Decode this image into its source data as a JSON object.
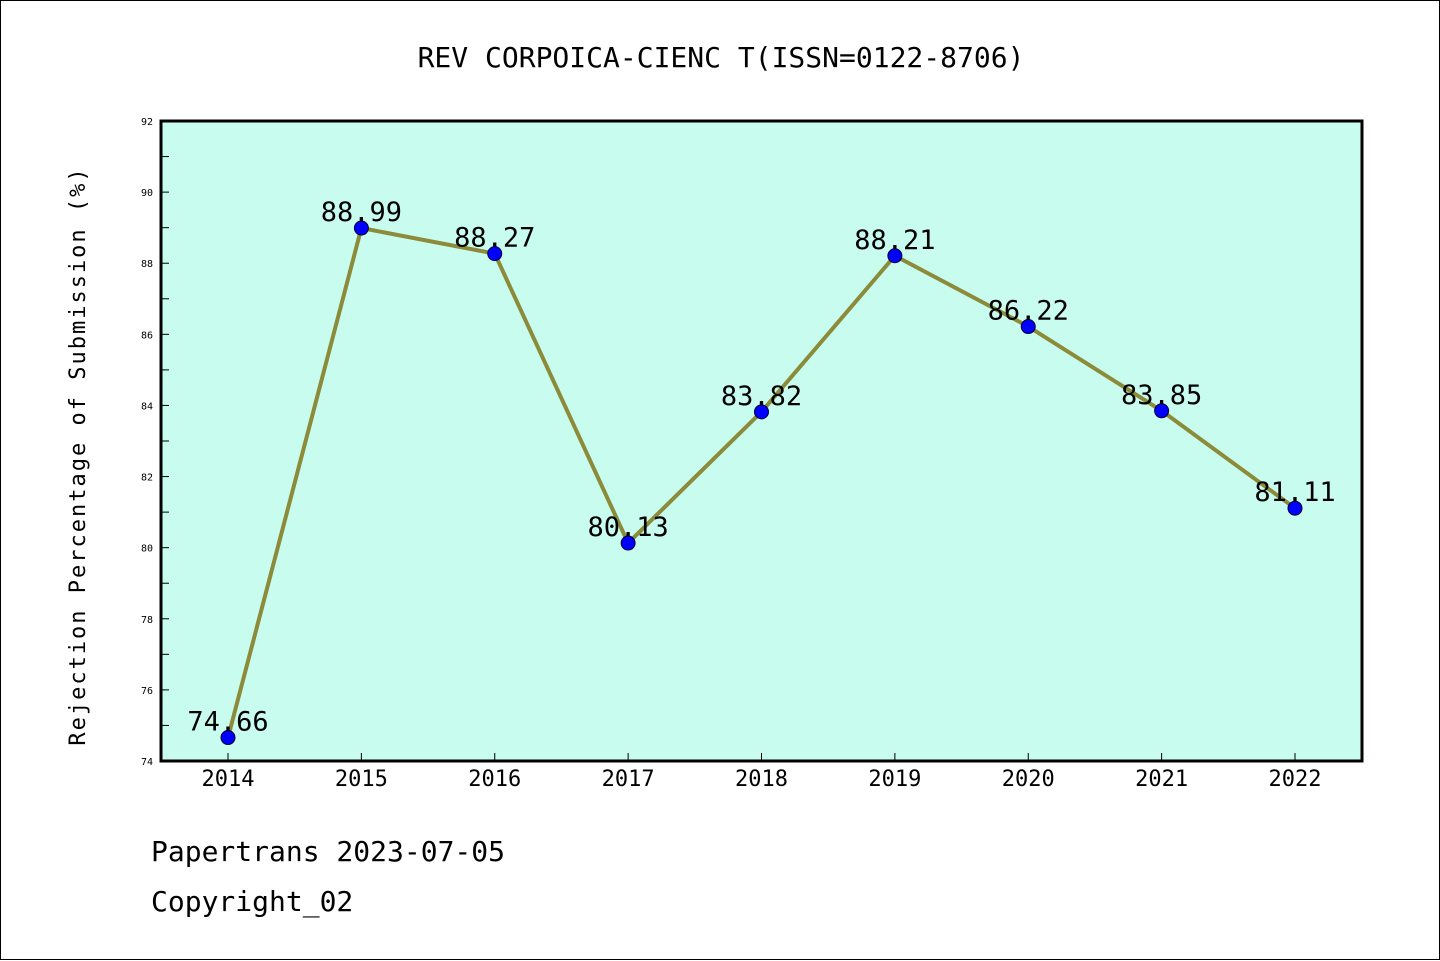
{
  "chart_data": {
    "type": "line",
    "title": "REV CORPOICA-CIENC T(ISSN=0122-8706)",
    "ylabel": "Rejection Percentage of Submission (%)",
    "xlabel": "",
    "categories": [
      "2014",
      "2015",
      "2016",
      "2017",
      "2018",
      "2019",
      "2020",
      "2021",
      "2022"
    ],
    "series": [
      {
        "values": [
          74.66,
          88.99,
          88.27,
          80.13,
          83.82,
          88.21,
          86.22,
          83.85,
          81.11
        ],
        "value_labels": [
          "74.66",
          "88.99",
          "88.27",
          "80.13",
          "83.82",
          "88.21",
          "86.22",
          "83.85",
          "81.11"
        ]
      }
    ],
    "ylim": [
      74,
      92
    ],
    "yticks": [
      74,
      76,
      78,
      80,
      82,
      84,
      86,
      88,
      90,
      92
    ],
    "grid": false,
    "legend": "none",
    "colors": {
      "plot_background": "#c8fcee",
      "line": "#8b8b3a",
      "marker": "#0000ff"
    }
  },
  "footer": {
    "source": "Papertrans 2023-07-05",
    "copyright": "Copyright_02"
  }
}
